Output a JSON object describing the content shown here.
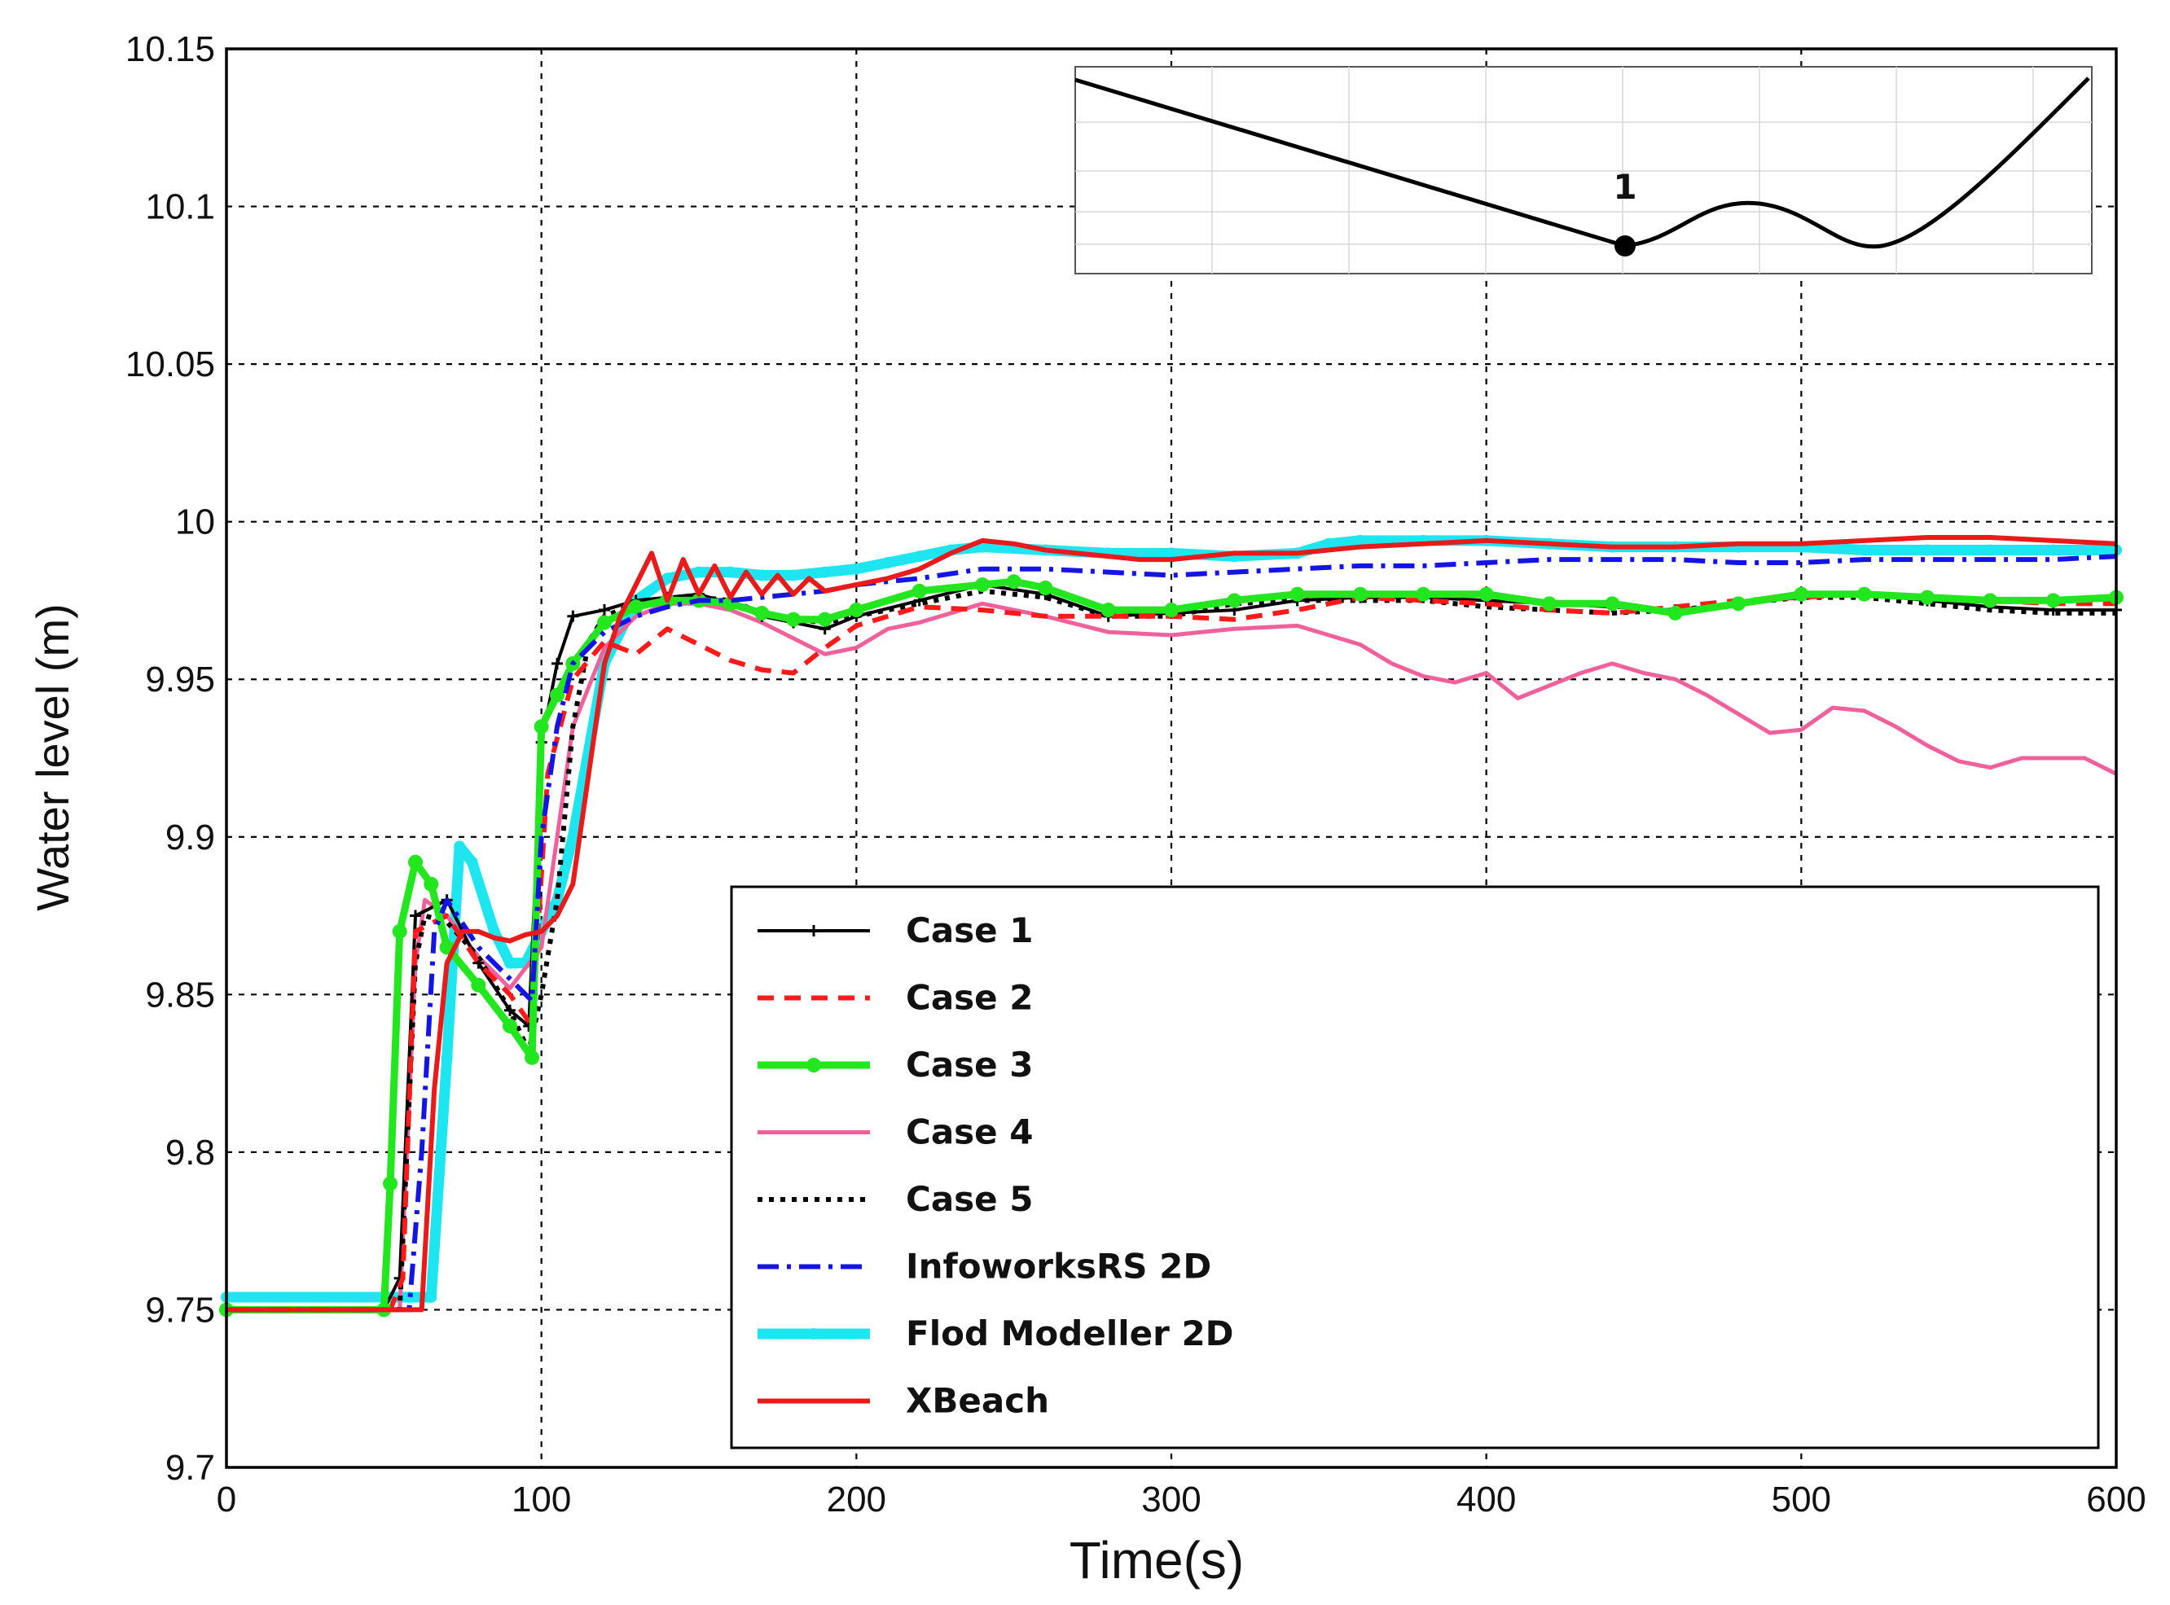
{
  "chart_data": {
    "type": "line",
    "title": "",
    "xlabel": "Time(s)",
    "ylabel": "Water level (m)",
    "xlim": [
      0,
      600
    ],
    "ylim": [
      9.7,
      10.15
    ],
    "x_ticks": [
      "0",
      "100",
      "200",
      "300",
      "400",
      "500",
      "600"
    ],
    "y_ticks": [
      "9.7",
      "9.75",
      "9.8",
      "9.85",
      "9.9",
      "9.95",
      "10",
      "10.05",
      "10.1",
      "10.15"
    ],
    "grid": true,
    "legend_position": "lower-right",
    "series": [
      {
        "name": "Case 1",
        "color": "#000000",
        "x": [
          0,
          50,
          55,
          60,
          70,
          80,
          90,
          96,
          100,
          105,
          110,
          120,
          130,
          140,
          150,
          160,
          170,
          180,
          190,
          200,
          220,
          240,
          260,
          280,
          300,
          320,
          340,
          360,
          380,
          400,
          420,
          440,
          460,
          480,
          500,
          520,
          540,
          560,
          580,
          600
        ],
        "y": [
          9.75,
          9.75,
          9.76,
          9.875,
          9.88,
          9.86,
          9.845,
          9.84,
          9.93,
          9.955,
          9.97,
          9.972,
          9.975,
          9.976,
          9.977,
          9.974,
          9.97,
          9.968,
          9.966,
          9.97,
          9.975,
          9.98,
          9.977,
          9.97,
          9.971,
          9.972,
          9.975,
          9.976,
          9.976,
          9.975,
          9.974,
          9.973,
          9.972,
          9.974,
          9.976,
          9.977,
          9.975,
          9.973,
          9.972,
          9.972
        ]
      },
      {
        "name": "Case 2",
        "color": "#ff1a1a",
        "x": [
          0,
          52,
          56,
          60,
          70,
          80,
          90,
          97,
          102,
          110,
          120,
          130,
          140,
          150,
          160,
          170,
          180,
          190,
          200,
          220,
          240,
          260,
          280,
          300,
          320,
          340,
          360,
          380,
          400,
          420,
          440,
          460,
          480,
          500,
          520,
          540,
          560,
          580,
          600
        ],
        "y": [
          9.75,
          9.75,
          9.76,
          9.87,
          9.875,
          9.86,
          9.85,
          9.84,
          9.92,
          9.95,
          9.962,
          9.958,
          9.966,
          9.961,
          9.956,
          9.953,
          9.952,
          9.96,
          9.967,
          9.973,
          9.972,
          9.97,
          9.97,
          9.97,
          9.969,
          9.972,
          9.976,
          9.975,
          9.974,
          9.972,
          9.971,
          9.973,
          9.975,
          9.976,
          9.977,
          9.976,
          9.975,
          9.974,
          9.974
        ]
      },
      {
        "name": "Case 3",
        "color": "#22e61e",
        "x": [
          0,
          50,
          52,
          55,
          60,
          65,
          70,
          80,
          90,
          97,
          100,
          105,
          110,
          120,
          130,
          140,
          150,
          160,
          170,
          180,
          190,
          200,
          220,
          240,
          250,
          260,
          280,
          300,
          320,
          340,
          360,
          380,
          400,
          420,
          440,
          460,
          480,
          500,
          520,
          540,
          560,
          580,
          600
        ],
        "y": [
          9.75,
          9.75,
          9.79,
          9.87,
          9.892,
          9.885,
          9.865,
          9.853,
          9.84,
          9.83,
          9.935,
          9.945,
          9.955,
          9.968,
          9.973,
          9.975,
          9.975,
          9.974,
          9.971,
          9.969,
          9.969,
          9.972,
          9.978,
          9.98,
          9.981,
          9.979,
          9.972,
          9.972,
          9.975,
          9.977,
          9.977,
          9.977,
          9.977,
          9.974,
          9.974,
          9.971,
          9.974,
          9.977,
          9.977,
          9.976,
          9.975,
          9.975,
          9.976
        ]
      },
      {
        "name": "Case 4",
        "color": "#f0609a",
        "x": [
          0,
          55,
          60,
          63,
          70,
          80,
          90,
          100,
          110,
          120,
          130,
          140,
          150,
          160,
          170,
          180,
          190,
          200,
          210,
          220,
          240,
          260,
          280,
          300,
          320,
          340,
          360,
          370,
          380,
          390,
          400,
          410,
          420,
          430,
          440,
          450,
          460,
          470,
          480,
          490,
          500,
          510,
          520,
          530,
          540,
          550,
          560,
          570,
          580,
          590,
          600
        ],
        "y": [
          9.75,
          9.75,
          9.86,
          9.88,
          9.875,
          9.862,
          9.852,
          9.865,
          9.935,
          9.96,
          9.97,
          9.974,
          9.974,
          9.972,
          9.968,
          9.963,
          9.958,
          9.96,
          9.966,
          9.968,
          9.974,
          9.97,
          9.965,
          9.964,
          9.966,
          9.967,
          9.961,
          9.955,
          9.951,
          9.949,
          9.952,
          9.944,
          9.948,
          9.952,
          9.955,
          9.952,
          9.95,
          9.945,
          9.939,
          9.933,
          9.934,
          9.941,
          9.94,
          9.935,
          9.929,
          9.924,
          9.922,
          9.925,
          9.925,
          9.925,
          9.92
        ]
      },
      {
        "name": "Case 5",
        "color": "#000000",
        "x": [
          0,
          55,
          60,
          63,
          70,
          80,
          90,
          96,
          100,
          105,
          110,
          115,
          120,
          130,
          140,
          150,
          160,
          170,
          180,
          190,
          200,
          220,
          240,
          260,
          280,
          300,
          320,
          340,
          360,
          380,
          400,
          420,
          440,
          460,
          480,
          500,
          520,
          540,
          560,
          580,
          600
        ],
        "y": [
          9.75,
          9.75,
          9.86,
          9.875,
          9.873,
          9.862,
          9.845,
          9.832,
          9.85,
          9.88,
          9.935,
          9.962,
          9.97,
          9.974,
          9.976,
          9.976,
          9.975,
          9.971,
          9.969,
          9.968,
          9.97,
          9.974,
          9.978,
          9.976,
          9.97,
          9.97,
          9.974,
          9.975,
          9.975,
          9.975,
          9.973,
          9.972,
          9.971,
          9.972,
          9.974,
          9.976,
          9.976,
          9.974,
          9.972,
          9.971,
          9.971
        ]
      },
      {
        "name": "InfoworksRS 2D",
        "color": "#1414e6",
        "x": [
          0,
          58,
          62,
          66,
          70,
          80,
          90,
          97,
          100,
          105,
          110,
          120,
          130,
          140,
          150,
          160,
          170,
          180,
          190,
          200,
          220,
          240,
          260,
          280,
          300,
          320,
          340,
          360,
          380,
          400,
          420,
          440,
          460,
          480,
          500,
          520,
          540,
          560,
          580,
          600
        ],
        "y": [
          9.75,
          9.75,
          9.8,
          9.87,
          9.88,
          9.865,
          9.855,
          9.848,
          9.9,
          9.935,
          9.955,
          9.965,
          9.97,
          9.973,
          9.975,
          9.975,
          9.976,
          9.977,
          9.978,
          9.98,
          9.982,
          9.985,
          9.985,
          9.984,
          9.983,
          9.984,
          9.985,
          9.986,
          9.986,
          9.987,
          9.988,
          9.988,
          9.988,
          9.987,
          9.987,
          9.988,
          9.988,
          9.988,
          9.988,
          9.989
        ]
      },
      {
        "name": "Flod Modeller 2D",
        "color": "#1ee6f0",
        "x": [
          0,
          58,
          65,
          70,
          74,
          78,
          85,
          90,
          95,
          100,
          105,
          110,
          120,
          130,
          140,
          150,
          160,
          170,
          180,
          190,
          200,
          210,
          220,
          230,
          240,
          260,
          280,
          300,
          320,
          340,
          350,
          360,
          380,
          400,
          420,
          440,
          460,
          480,
          500,
          520,
          540,
          560,
          580,
          600
        ],
        "y": [
          9.754,
          9.754,
          9.754,
          9.83,
          9.897,
          9.892,
          9.87,
          9.86,
          9.86,
          9.87,
          9.88,
          9.9,
          9.955,
          9.975,
          9.982,
          9.984,
          9.984,
          9.983,
          9.983,
          9.984,
          9.985,
          9.987,
          9.989,
          9.991,
          9.992,
          9.991,
          9.99,
          9.99,
          9.989,
          9.99,
          9.993,
          9.994,
          9.994,
          9.994,
          9.993,
          9.992,
          9.992,
          9.992,
          9.992,
          9.991,
          9.991,
          9.991,
          9.991,
          9.991
        ]
      },
      {
        "name": "XBeach",
        "color": "#e81a1a",
        "x": [
          0,
          62,
          66,
          70,
          75,
          80,
          85,
          90,
          95,
          100,
          105,
          110,
          115,
          120,
          125,
          130,
          135,
          140,
          145,
          150,
          155,
          160,
          165,
          170,
          175,
          180,
          185,
          190,
          200,
          210,
          220,
          230,
          240,
          250,
          260,
          270,
          280,
          290,
          300,
          320,
          340,
          360,
          380,
          400,
          420,
          440,
          460,
          480,
          500,
          520,
          540,
          560,
          580,
          600
        ],
        "y": [
          9.75,
          9.75,
          9.82,
          9.86,
          9.87,
          9.87,
          9.868,
          9.867,
          9.869,
          9.87,
          9.875,
          9.885,
          9.92,
          9.955,
          9.97,
          9.98,
          9.99,
          9.975,
          9.988,
          9.977,
          9.986,
          9.976,
          9.984,
          9.977,
          9.983,
          9.977,
          9.982,
          9.978,
          9.98,
          9.982,
          9.985,
          9.99,
          9.994,
          9.993,
          9.991,
          9.99,
          9.989,
          9.988,
          9.988,
          9.99,
          9.99,
          9.992,
          9.993,
          9.994,
          9.993,
          9.992,
          9.992,
          9.993,
          9.993,
          9.994,
          9.995,
          9.995,
          9.994,
          9.993
        ]
      }
    ]
  },
  "inset": {
    "marker_label": "1"
  }
}
